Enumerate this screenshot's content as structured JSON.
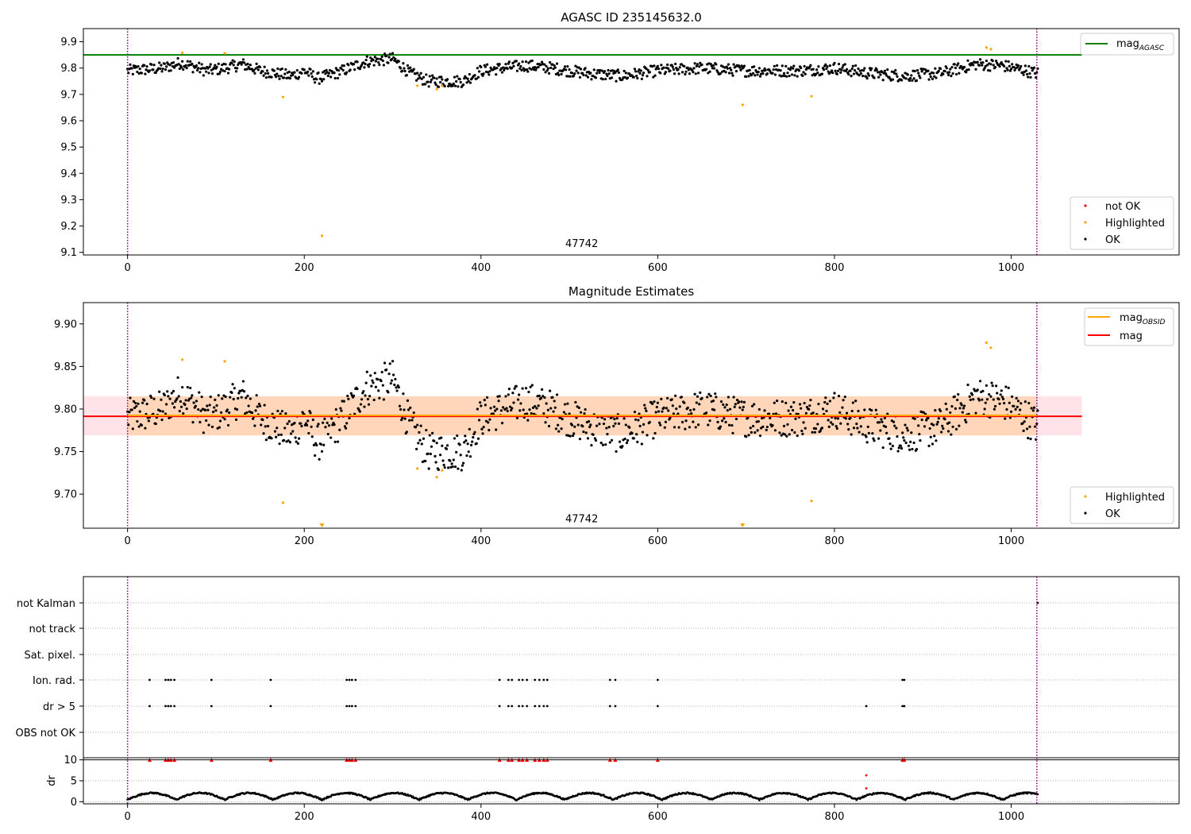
{
  "chart_data": [
    {
      "type": "scatter",
      "title": "AGASC ID 235145632.0",
      "xlabel": "",
      "ylabel": "",
      "xlim": [
        -50,
        1190
      ],
      "ylim": [
        9.09,
        9.95
      ],
      "xticks": [
        0,
        200,
        400,
        600,
        800,
        1000
      ],
      "yticks": [
        9.1,
        9.2,
        9.3,
        9.4,
        9.5,
        9.6,
        9.7,
        9.8,
        9.9
      ],
      "hlines": [
        {
          "y": 9.85,
          "color": "#008000",
          "x_end": 1080
        }
      ],
      "vlines": [
        {
          "x": 0,
          "color": "#800080",
          "style": "dotted"
        },
        {
          "x": 1029,
          "color": "#800080",
          "style": "dotted"
        }
      ],
      "annotation": {
        "text": "47742",
        "x": 514,
        "y": 9.12
      },
      "legend_upper": {
        "placement": "top-right",
        "entries": [
          {
            "label_main": "mag",
            "label_sub": "AGASC",
            "color": "#008000"
          }
        ]
      },
      "legend_lower": {
        "placement": "bottom-right",
        "entries": [
          {
            "label": "not OK",
            "color": "#ff0000"
          },
          {
            "label": "Highlighted",
            "color": "#ffa500"
          },
          {
            "label": "OK",
            "color": "#000000"
          }
        ]
      },
      "series": [
        {
          "name": "OK",
          "color": "#000000",
          "generator": "ok_trace"
        },
        {
          "name": "Highlighted",
          "color": "#ffa500",
          "points": [
            [
              62,
              9.858
            ],
            [
              110,
              9.856
            ],
            [
              176,
              9.69
            ],
            [
              220,
              9.163
            ],
            [
              328,
              9.733
            ],
            [
              350,
              9.72
            ],
            [
              356,
              9.733
            ],
            [
              696,
              9.66
            ],
            [
              774,
              9.693
            ],
            [
              972,
              9.878
            ],
            [
              977,
              9.872
            ]
          ]
        }
      ]
    },
    {
      "type": "scatter",
      "title": "Magnitude Estimates",
      "xlabel": "",
      "ylabel": "",
      "xlim": [
        -50,
        1190
      ],
      "ylim": [
        9.66,
        9.925
      ],
      "xticks": [
        0,
        200,
        400,
        600,
        800,
        1000
      ],
      "yticks": [
        9.7,
        9.75,
        9.8,
        9.85,
        9.9
      ],
      "ytick_labels": [
        "9.70",
        "9.75",
        "9.80",
        "9.85",
        "9.90"
      ],
      "hlines": [
        {
          "y": 9.7915,
          "color": "#ff0000",
          "x_end": 1080
        },
        {
          "y": 9.7925,
          "color": "#ffa500",
          "x_end": 1029
        }
      ],
      "bands": [
        {
          "y0": 9.769,
          "y1": 9.815,
          "x0": -50,
          "x1": 1080,
          "color": "#ffc0cb",
          "opacity": 0.45
        },
        {
          "y0": 9.769,
          "y1": 9.815,
          "x0": 0,
          "x1": 1029,
          "color": "#ffa500",
          "opacity": 0.2
        }
      ],
      "vlines": [
        {
          "x": 0,
          "color": "#800080",
          "style": "dotted"
        },
        {
          "x": 1029,
          "color": "#800080",
          "style": "dotted"
        }
      ],
      "annotation": {
        "text": "47742",
        "x": 514,
        "y": 9.667
      },
      "legend_upper": {
        "placement": "top-right",
        "entries": [
          {
            "label_main": "mag",
            "label_sub": "OBSID",
            "color": "#ffa500"
          },
          {
            "label": "mag",
            "color": "#ff0000"
          }
        ]
      },
      "legend_lower": {
        "placement": "bottom-right",
        "entries": [
          {
            "label": "Highlighted",
            "color": "#ffa500"
          },
          {
            "label": "OK",
            "color": "#000000"
          }
        ]
      },
      "series": [
        {
          "name": "OK",
          "color": "#000000",
          "generator": "ok_trace"
        },
        {
          "name": "Highlighted",
          "color": "#ffa500",
          "points": [
            [
              62,
              9.858
            ],
            [
              110,
              9.856
            ],
            [
              176,
              9.69
            ],
            [
              328,
              9.73
            ],
            [
              350,
              9.72
            ],
            [
              356,
              9.728
            ],
            [
              774,
              9.692
            ],
            [
              972,
              9.878
            ],
            [
              977,
              9.872
            ]
          ]
        }
      ],
      "clipped_markers": [
        {
          "x": 220,
          "color": "#ffa500"
        },
        {
          "x": 696,
          "color": "#ffa500"
        }
      ]
    },
    {
      "type": "scatter",
      "title": "",
      "categories": [
        "not Kalman",
        "not track",
        "Sat. pixel.",
        "Ion. rad.",
        "dr > 5",
        "OBS not OK"
      ],
      "xlim": [
        -50,
        1190
      ],
      "xticks": [
        0,
        200,
        400,
        600,
        800,
        1000
      ],
      "flag_times": [
        25,
        43,
        46,
        49,
        53,
        95,
        162,
        248,
        251,
        254,
        258,
        421,
        431,
        435,
        443,
        447,
        452,
        461,
        466,
        471,
        475,
        546,
        552,
        600,
        877,
        879
      ],
      "flag_rows": [
        "Ion. rad.",
        "dr > 5"
      ],
      "extra_flags": [
        {
          "x": 836,
          "row": "dr > 5"
        },
        {
          "x": 1030,
          "row": "not Kalman"
        }
      ],
      "vlines": [
        {
          "x": 0,
          "color": "#800080",
          "style": "dotted"
        },
        {
          "x": 1029,
          "color": "#800080",
          "style": "dotted"
        }
      ]
    },
    {
      "type": "scatter",
      "title": "",
      "ylabel": "dr",
      "xlim": [
        -50,
        1190
      ],
      "ylim": [
        -0.5,
        10.5
      ],
      "xticks": [
        0,
        200,
        400,
        600,
        800,
        1000
      ],
      "yticks": [
        0,
        5,
        10
      ],
      "hlines": [
        {
          "y": 10,
          "color": "#000000",
          "style": "solid"
        }
      ],
      "outliers": [
        {
          "x": 836,
          "y": 6.3,
          "color": "#ff0000"
        },
        {
          "x": 836,
          "y": 3.2,
          "color": "#ff0000"
        }
      ],
      "red_triangles_at": 10,
      "vlines": [
        {
          "x": 0,
          "color": "#800080",
          "style": "dotted"
        },
        {
          "x": 1029,
          "color": "#800080",
          "style": "dotted"
        }
      ]
    }
  ]
}
